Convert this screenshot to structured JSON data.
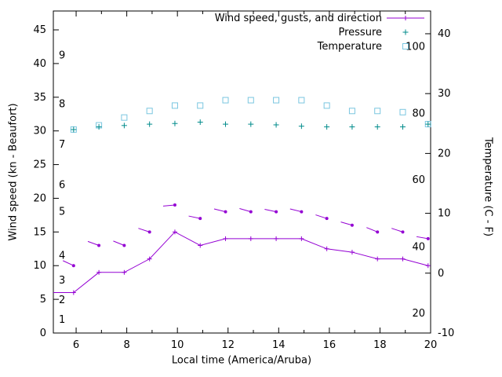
{
  "chart_data": {
    "type": "line",
    "title": "",
    "xlabel": "Local time (America/Aruba)",
    "ylabel_left": "Wind speed (kn - Beaufort)",
    "ylabel_right": "Temperature (C - F)",
    "x_range": [
      5.1,
      20
    ],
    "y_left_range": [
      0,
      47.8
    ],
    "y_right_range": [
      -10,
      43.8
    ],
    "x_ticks": [
      6,
      8,
      10,
      12,
      14,
      16,
      18,
      20
    ],
    "x_minor_ticks": [
      7,
      9,
      11,
      13,
      15,
      17,
      19
    ],
    "y_left_ticks": [
      0,
      5,
      10,
      15,
      20,
      25,
      30,
      35,
      40,
      45
    ],
    "y_right_ticks": [
      -10,
      0,
      10,
      20,
      30,
      40
    ],
    "grid": false,
    "legend_position": "top-right-inside",
    "colors": {
      "wind": "#9400d3",
      "pressure": "#008b8b",
      "temperature": "#7ac6e0"
    },
    "beaufort_inner_labels": [
      {
        "label": "1",
        "kn": 2
      },
      {
        "label": "2",
        "kn": 4.9
      },
      {
        "label": "3",
        "kn": 7.8
      },
      {
        "label": "4",
        "kn": 11.5
      },
      {
        "label": "5",
        "kn": 18
      },
      {
        "label": "6",
        "kn": 22
      },
      {
        "label": "7",
        "kn": 28
      },
      {
        "label": "8",
        "kn": 34
      },
      {
        "label": "9",
        "kn": 41.2
      }
    ],
    "fahrenheit_inner_labels": [
      {
        "label": "20",
        "c": -6.7
      },
      {
        "label": "40",
        "c": 4.4
      },
      {
        "label": "60",
        "c": 15.6
      },
      {
        "label": "80",
        "c": 26.7
      },
      {
        "label": "100",
        "c": 37.8
      }
    ],
    "legend": [
      {
        "label": "Wind speed, gusts, and direction",
        "series": "wind",
        "marker": "line-plus"
      },
      {
        "label": "Pressure",
        "series": "pressure",
        "marker": "plus"
      },
      {
        "label": "Temperature",
        "series": "temperature",
        "marker": "square"
      }
    ],
    "series": {
      "wind_speed": {
        "axis": "left",
        "units": "kn",
        "x": [
          5.1,
          5.9,
          6.9,
          7.9,
          8.9,
          9.9,
          10.9,
          11.9,
          12.9,
          13.9,
          14.9,
          15.9,
          16.9,
          17.9,
          18.9,
          19.9
        ],
        "y": [
          6,
          6,
          9,
          9,
          11,
          15,
          13,
          14,
          14,
          14,
          14,
          12.5,
          12,
          11,
          11,
          10
        ]
      },
      "wind_gusts": {
        "axis": "left",
        "units": "kn",
        "x": [
          5.9,
          6.9,
          7.9,
          8.9,
          9.9,
          10.9,
          11.9,
          12.9,
          13.9,
          14.9,
          15.9,
          16.9,
          17.9,
          18.9,
          19.9
        ],
        "y": [
          10,
          13,
          13,
          15,
          19,
          17,
          18,
          18,
          18,
          18,
          17,
          16,
          15,
          15,
          14
        ],
        "dir_screen_deg": [
          155,
          160,
          158,
          162,
          185,
          168,
          166,
          164,
          168,
          166,
          162,
          164,
          158,
          162,
          170
        ]
      },
      "pressure": {
        "axis": "left",
        "units": "plot-units",
        "x": [
          5.9,
          6.9,
          7.9,
          8.9,
          9.9,
          10.9,
          11.9,
          12.9,
          13.9,
          14.9,
          15.9,
          16.9,
          17.9,
          18.9,
          19.9
        ],
        "y": [
          30.2,
          30.6,
          30.8,
          31.0,
          31.1,
          31.3,
          31.0,
          31.0,
          30.9,
          30.7,
          30.6,
          30.6,
          30.6,
          30.6,
          31.0
        ]
      },
      "temperature": {
        "axis": "right",
        "units": "C",
        "x": [
          5.9,
          6.9,
          7.9,
          8.9,
          9.9,
          10.9,
          11.9,
          12.9,
          13.9,
          14.9,
          15.9,
          16.9,
          17.9,
          18.9,
          19.9
        ],
        "y": [
          24,
          24.7,
          26,
          27.1,
          28,
          28,
          28.9,
          28.9,
          28.9,
          28.9,
          28,
          27.1,
          27.1,
          26.9,
          24.9
        ]
      }
    }
  }
}
